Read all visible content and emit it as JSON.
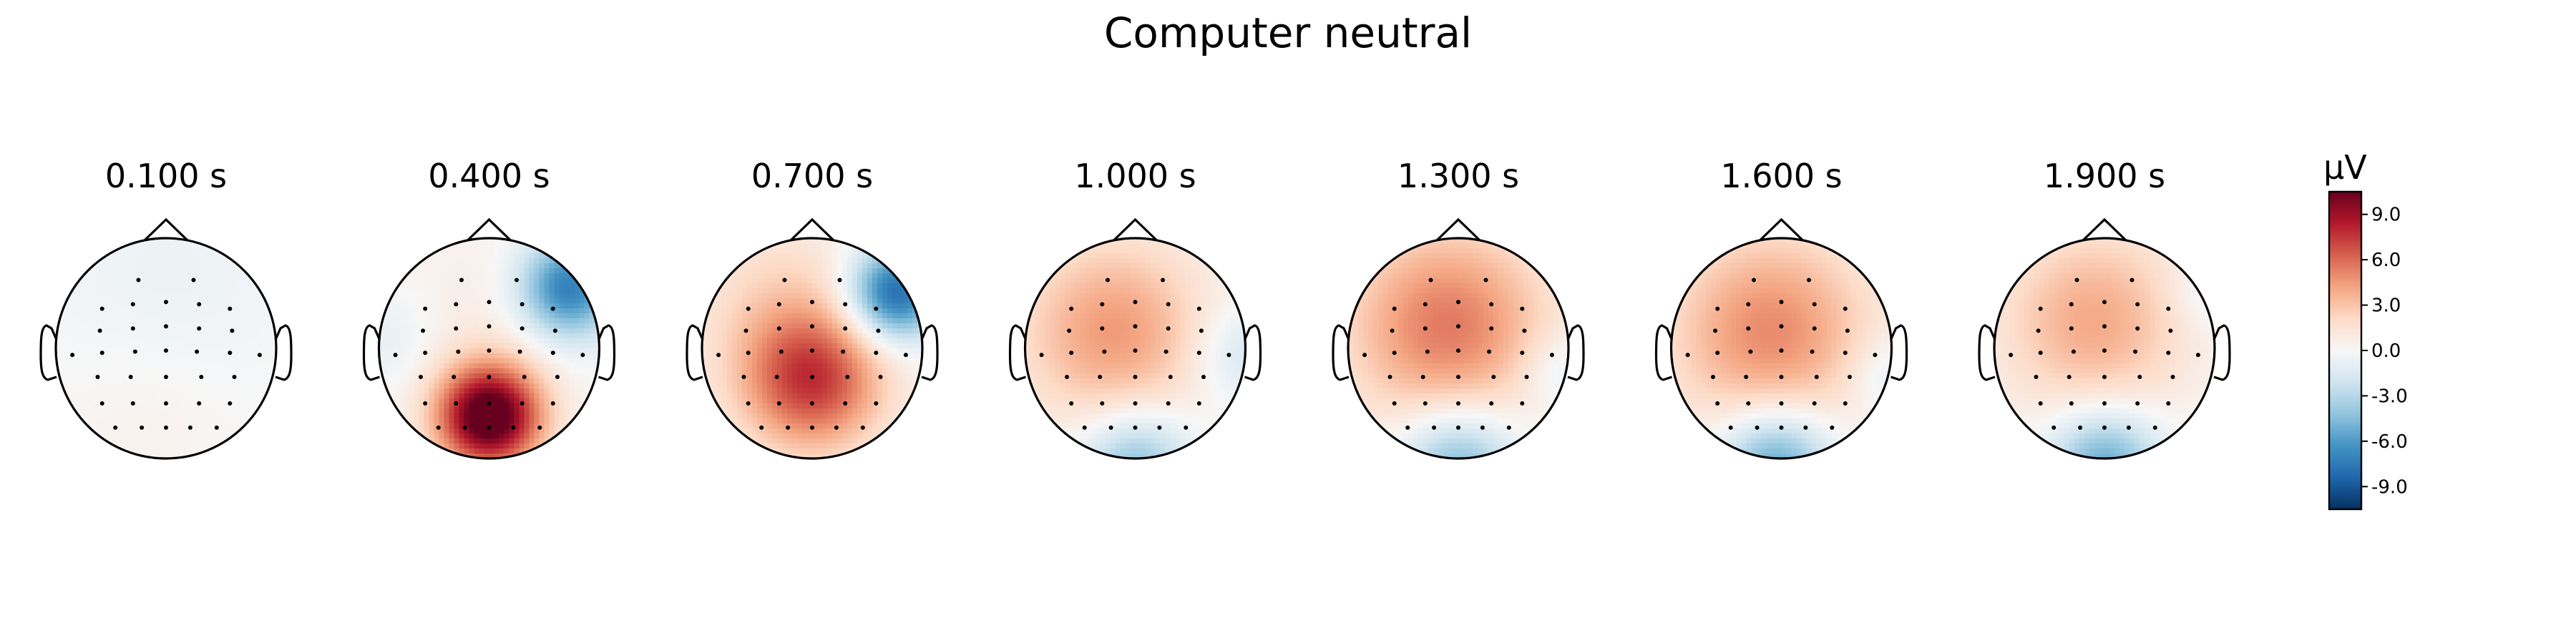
{
  "figure": {
    "title": "Computer neutral"
  },
  "chart_data": {
    "type": "heatmap",
    "title": "Computer neutral",
    "units": "µV",
    "colormap": "RdBu_r",
    "vlim": [
      -10.5,
      10.5
    ],
    "colorbar": {
      "label": "µV",
      "ticks": [
        9.0,
        6.0,
        3.0,
        0.0,
        -3.0,
        -6.0,
        -9.0
      ],
      "tick_labels": [
        "9.0",
        "6.0",
        "3.0",
        "0.0",
        "-3.0",
        "-6.0",
        "-9.0"
      ]
    },
    "electrode_positions": [
      [
        -0.25,
        0.62
      ],
      [
        0.25,
        0.62
      ],
      [
        -0.58,
        0.36
      ],
      [
        -0.3,
        0.4
      ],
      [
        0.0,
        0.42
      ],
      [
        0.3,
        0.4
      ],
      [
        0.58,
        0.36
      ],
      [
        -0.6,
        0.16
      ],
      [
        -0.3,
        0.18
      ],
      [
        0.0,
        0.2
      ],
      [
        0.3,
        0.18
      ],
      [
        0.6,
        0.16
      ],
      [
        -0.85,
        -0.06
      ],
      [
        -0.58,
        -0.04
      ],
      [
        -0.28,
        -0.03
      ],
      [
        0.0,
        -0.02
      ],
      [
        0.28,
        -0.03
      ],
      [
        0.58,
        -0.04
      ],
      [
        0.85,
        -0.06
      ],
      [
        -0.62,
        -0.26
      ],
      [
        -0.32,
        -0.26
      ],
      [
        0.0,
        -0.26
      ],
      [
        0.32,
        -0.26
      ],
      [
        0.62,
        -0.26
      ],
      [
        -0.58,
        -0.5
      ],
      [
        -0.3,
        -0.5
      ],
      [
        0.0,
        -0.5
      ],
      [
        0.3,
        -0.5
      ],
      [
        0.58,
        -0.5
      ],
      [
        -0.46,
        -0.72
      ],
      [
        -0.22,
        -0.72
      ],
      [
        0.0,
        -0.72
      ],
      [
        0.22,
        -0.72
      ],
      [
        0.46,
        -0.72
      ]
    ],
    "topomaps": [
      {
        "time_label": "0.100 s",
        "time": 0.1,
        "sources": [
          {
            "x": 0.0,
            "y": 0.6,
            "sigma": 0.8,
            "amp": -0.6
          },
          {
            "x": -0.2,
            "y": -0.7,
            "sigma": 0.6,
            "amp": 0.5
          }
        ]
      },
      {
        "time_label": "0.400 s",
        "time": 0.4,
        "sources": [
          {
            "x": 0.0,
            "y": -0.62,
            "sigma": 0.33,
            "amp": 12.0
          },
          {
            "x": 0.72,
            "y": 0.55,
            "sigma": 0.32,
            "amp": -7.5
          },
          {
            "x": -0.9,
            "y": 0.1,
            "sigma": 0.3,
            "amp": -1.0
          },
          {
            "x": 0.0,
            "y": 0.35,
            "sigma": 0.6,
            "amp": 0.8
          }
        ]
      },
      {
        "time_label": "0.700 s",
        "time": 0.7,
        "sources": [
          {
            "x": 0.0,
            "y": -0.3,
            "sigma": 0.45,
            "amp": 7.0
          },
          {
            "x": 0.75,
            "y": 0.5,
            "sigma": 0.3,
            "amp": -8.5
          },
          {
            "x": -0.3,
            "y": 0.4,
            "sigma": 0.6,
            "amp": 2.0
          }
        ]
      },
      {
        "time_label": "1.000 s",
        "time": 1.0,
        "sources": [
          {
            "x": -0.2,
            "y": 0.15,
            "sigma": 0.6,
            "amp": 4.5
          },
          {
            "x": 0.0,
            "y": -1.05,
            "sigma": 0.35,
            "amp": -4.5
          },
          {
            "x": 0.95,
            "y": -0.05,
            "sigma": 0.3,
            "amp": -2.0
          }
        ]
      },
      {
        "time_label": "1.300 s",
        "time": 1.3,
        "sources": [
          {
            "x": -0.1,
            "y": 0.2,
            "sigma": 0.65,
            "amp": 5.5
          },
          {
            "x": 0.0,
            "y": -1.05,
            "sigma": 0.38,
            "amp": -5.0
          },
          {
            "x": 0.9,
            "y": -0.2,
            "sigma": 0.25,
            "amp": -1.5
          }
        ]
      },
      {
        "time_label": "1.600 s",
        "time": 1.6,
        "sources": [
          {
            "x": -0.1,
            "y": 0.15,
            "sigma": 0.65,
            "amp": 5.0
          },
          {
            "x": -0.05,
            "y": -1.05,
            "sigma": 0.36,
            "amp": -6.0
          },
          {
            "x": 0.95,
            "y": -0.25,
            "sigma": 0.25,
            "amp": -1.5
          }
        ]
      },
      {
        "time_label": "1.900 s",
        "time": 1.9,
        "sources": [
          {
            "x": -0.1,
            "y": 0.25,
            "sigma": 0.6,
            "amp": 4.0
          },
          {
            "x": 0.0,
            "y": -1.05,
            "sigma": 0.35,
            "amp": -5.5
          },
          {
            "x": 0.95,
            "y": 0.5,
            "sigma": 0.25,
            "amp": -1.2
          }
        ]
      }
    ]
  }
}
